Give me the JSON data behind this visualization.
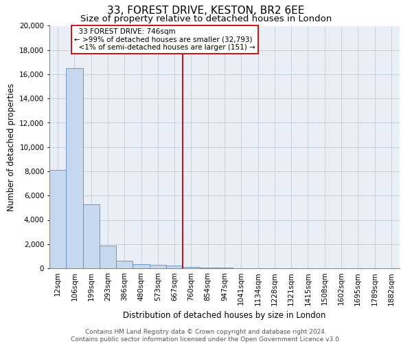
{
  "title_line1": "33, FOREST DRIVE, KESTON, BR2 6EE",
  "title_line2": "Size of property relative to detached houses in London",
  "xlabel": "Distribution of detached houses by size in London",
  "ylabel": "Number of detached properties",
  "bar_color": "#c5d8ee",
  "bar_edge_color": "#5b8ec4",
  "grid_color": "#c8d0dc",
  "background_color": "#eaeff7",
  "vline_color": "#bb0000",
  "vline_idx": 8,
  "categories": [
    "12sqm",
    "106sqm",
    "199sqm",
    "293sqm",
    "386sqm",
    "480sqm",
    "573sqm",
    "667sqm",
    "760sqm",
    "854sqm",
    "947sqm",
    "1041sqm",
    "1134sqm",
    "1228sqm",
    "1321sqm",
    "1415sqm",
    "1508sqm",
    "1602sqm",
    "1695sqm",
    "1789sqm",
    "1882sqm"
  ],
  "values": [
    8100,
    16500,
    5300,
    1850,
    650,
    360,
    280,
    230,
    130,
    50,
    30,
    20,
    15,
    10,
    8,
    6,
    5,
    4,
    3,
    2,
    1
  ],
  "ylim": [
    0,
    20000
  ],
  "yticks": [
    0,
    2000,
    4000,
    6000,
    8000,
    10000,
    12000,
    14000,
    16000,
    18000,
    20000
  ],
  "annotation_text": "  33 FOREST DRIVE: 746sqm\n← >99% of detached houses are smaller (32,793)\n  <1% of semi-detached houses are larger (151) →",
  "annotation_box_color": "#ffffff",
  "annotation_border_color": "#cc0000",
  "footer_text": "Contains HM Land Registry data © Crown copyright and database right 2024.\nContains public sector information licensed under the Open Government Licence v3.0.",
  "title_fontsize": 11,
  "subtitle_fontsize": 9.5,
  "axis_label_fontsize": 8.5,
  "tick_fontsize": 7.5,
  "annotation_fontsize": 7.5,
  "footer_fontsize": 6.5
}
